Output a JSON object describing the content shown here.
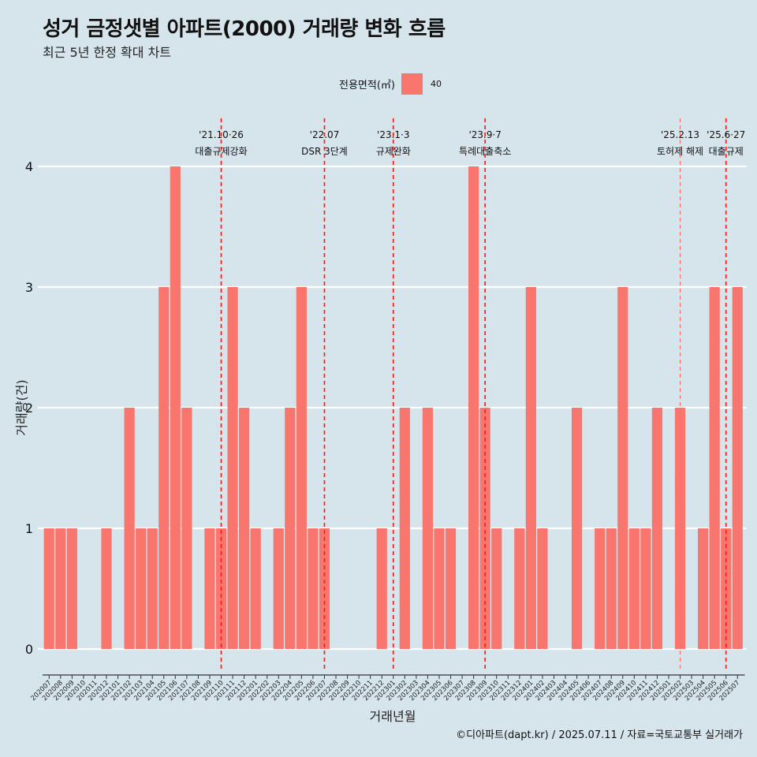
{
  "header": {
    "title": "성거 금정샛별 아파트(2000) 거래량 변화 흐름",
    "subtitle": "최근 5년 한정 확대 차트"
  },
  "legend": {
    "title": "전용면적(㎡)",
    "items": [
      {
        "label": "40",
        "color": "#f8766d"
      }
    ]
  },
  "caption": "©디아파트(dapt.kr) / 2025.07.11 / 자료=국토교통부 실거래가",
  "chart_data": {
    "type": "bar",
    "title": "성거 금정샛별 아파트(2000) 거래량 변화 흐름",
    "subtitle": "최근 5년 한정 확대 차트",
    "xlabel": "거래년월",
    "ylabel": "거래량(건)",
    "ylim": [
      0,
      4
    ],
    "yticks": [
      0,
      1,
      2,
      3,
      4
    ],
    "grid": true,
    "legend_position": "top",
    "bar_color": "#f8766d",
    "categories": [
      "202007",
      "202008",
      "202009",
      "202010",
      "202011",
      "202012",
      "202101",
      "202102",
      "202103",
      "202104",
      "202105",
      "202106",
      "202107",
      "202108",
      "202109",
      "202110",
      "202111",
      "202112",
      "202201",
      "202202",
      "202203",
      "202204",
      "202205",
      "202206",
      "202207",
      "202208",
      "202209",
      "202210",
      "202211",
      "202212",
      "202301",
      "202302",
      "202303",
      "202304",
      "202305",
      "202306",
      "202307",
      "202308",
      "202309",
      "202310",
      "202311",
      "202312",
      "202401",
      "202402",
      "202403",
      "202404",
      "202405",
      "202406",
      "202407",
      "202408",
      "202409",
      "202410",
      "202411",
      "202412",
      "202501",
      "202502",
      "202503",
      "202504",
      "202505",
      "202506",
      "202507"
    ],
    "series": [
      {
        "name": "40",
        "values": [
          1,
          1,
          1,
          0,
          0,
          1,
          0,
          2,
          1,
          1,
          3,
          4,
          2,
          0,
          1,
          1,
          3,
          2,
          1,
          0,
          1,
          2,
          3,
          1,
          1,
          0,
          0,
          0,
          0,
          1,
          0,
          2,
          0,
          2,
          1,
          1,
          0,
          4,
          2,
          1,
          0,
          1,
          3,
          1,
          0,
          0,
          2,
          0,
          1,
          1,
          3,
          1,
          1,
          2,
          0,
          2,
          0,
          1,
          3,
          1,
          3
        ]
      }
    ],
    "events": [
      {
        "month": "202110",
        "date": "'21.10·26",
        "label": "대출규제강화",
        "style": "bold"
      },
      {
        "month": "202207",
        "date": "'22.07",
        "label": "DSR 3단계",
        "style": "bold"
      },
      {
        "month": "202301",
        "date": "'23.1·3",
        "label": "규제완화",
        "style": "bold"
      },
      {
        "month": "202309",
        "date": "'23.9·7",
        "label": "특례대출축소",
        "style": "bold"
      },
      {
        "month": "202502",
        "date": "'25.2.13",
        "label": "토허제 해제",
        "style": "thin"
      },
      {
        "month": "202506",
        "date": "'25.6·27",
        "label": "대출규제",
        "style": "bold"
      }
    ]
  }
}
